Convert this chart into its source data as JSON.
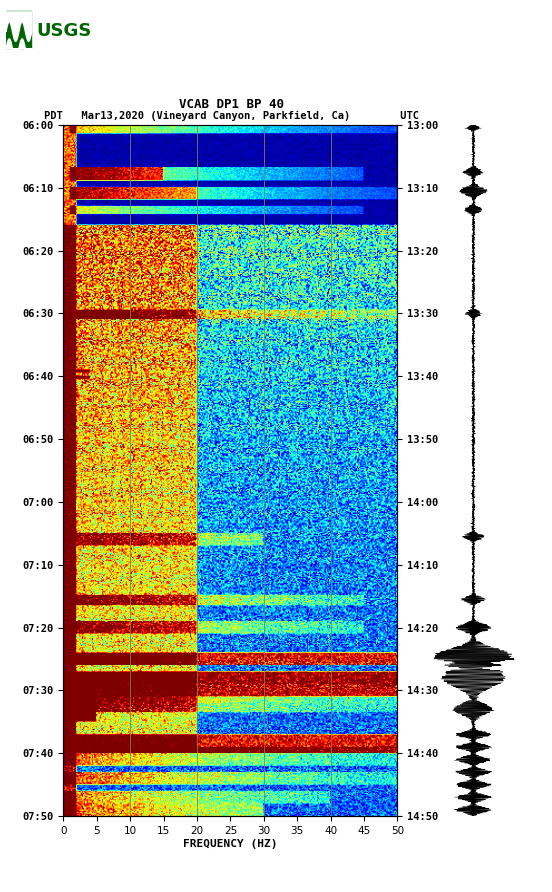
{
  "title_line1": "VCAB DP1 BP 40",
  "title_line2": "PDT   Mar13,2020 (Vineyard Canyon, Parkfield, Ca)        UTC",
  "xlabel": "FREQUENCY (HZ)",
  "freq_min": 0,
  "freq_max": 50,
  "freq_ticks": [
    0,
    5,
    10,
    15,
    20,
    25,
    30,
    35,
    40,
    45,
    50
  ],
  "time_labels_left": [
    "06:00",
    "06:10",
    "06:20",
    "06:30",
    "06:40",
    "06:50",
    "07:00",
    "07:10",
    "07:20",
    "07:30",
    "07:40",
    "07:50"
  ],
  "time_labels_right": [
    "13:00",
    "13:10",
    "13:20",
    "13:30",
    "13:40",
    "13:50",
    "14:00",
    "14:10",
    "14:20",
    "14:30",
    "14:40",
    "14:50"
  ],
  "background_color": "#ffffff",
  "colormap": "jet",
  "grid_color": "#808050",
  "grid_freq": [
    10,
    20,
    30,
    40
  ],
  "fig_width": 5.52,
  "fig_height": 8.92,
  "usgs_logo_color": "#006400",
  "n_times": 660,
  "n_freqs": 300
}
